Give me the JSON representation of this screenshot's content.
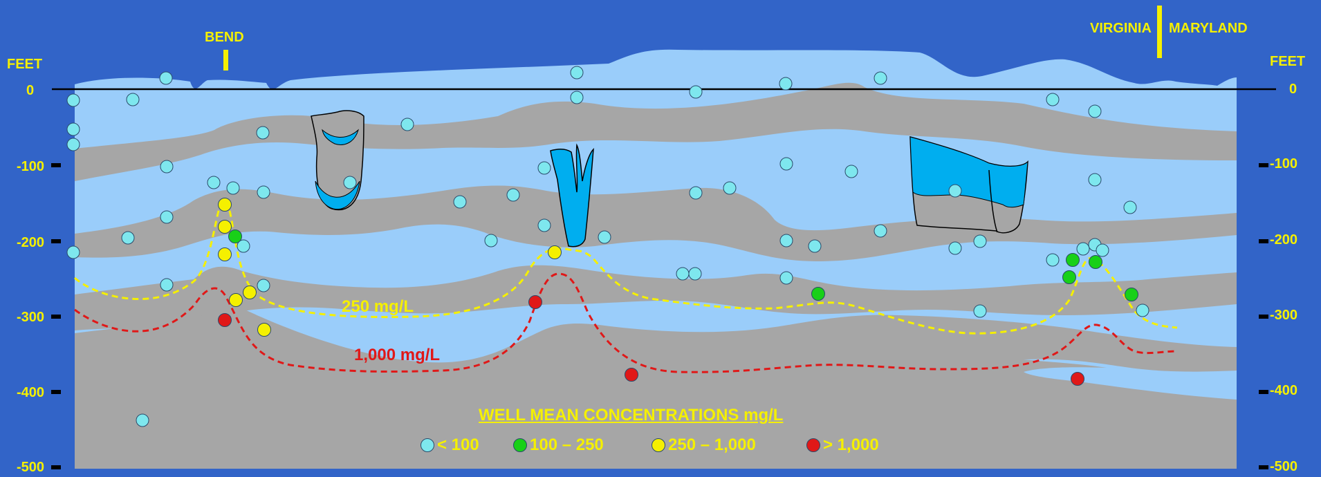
{
  "axis": {
    "unit_left": "FEET",
    "unit_right": "FEET",
    "ticks": [
      "0",
      "-100",
      "-200",
      "-300",
      "-400",
      "-500"
    ]
  },
  "markers": {
    "bend": "BEND",
    "state_left": "VIRGINIA",
    "state_right": "MARYLAND"
  },
  "contours": {
    "c250": "250 mg/L",
    "c1000": "1,000 mg/L"
  },
  "legend": {
    "title": "WELL MEAN CONCENTRATIONS mg/L",
    "items": [
      {
        "label": "< 100",
        "color": "#7ee7ee"
      },
      {
        "label": "100 – 250",
        "color": "#18d018"
      },
      {
        "label": "250 – 1,000",
        "color": "#f5f000"
      },
      {
        "label": "> 1,000",
        "color": "#e01818"
      }
    ]
  },
  "colors": {
    "background": "#3264c8",
    "aquifer": "#9acdfa",
    "confining": "#a6a6a6",
    "structure": "#00aeef",
    "contour_250": "#f5f000",
    "contour_1000": "#e01818"
  }
}
